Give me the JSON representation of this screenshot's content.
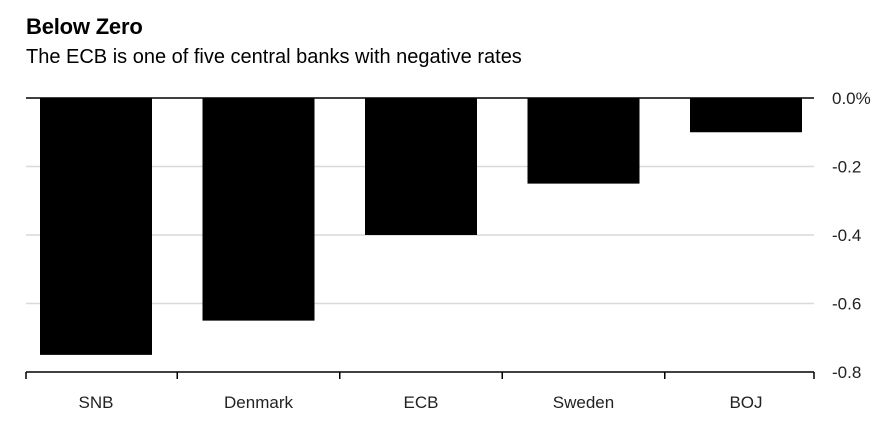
{
  "title": "Below Zero",
  "subtitle": "The ECB is one of five central banks with negative rates",
  "chart_data": {
    "type": "bar",
    "title": "Below Zero",
    "subtitle": "The ECB is one of five central banks with negative rates",
    "categories": [
      "SNB",
      "Denmark",
      "ECB",
      "Sweden",
      "BOJ"
    ],
    "values": [
      -0.75,
      -0.65,
      -0.4,
      -0.25,
      -0.1
    ],
    "ylim": [
      -0.8,
      0.0
    ],
    "yticks": [
      0.0,
      -0.2,
      -0.4,
      -0.6,
      -0.8
    ],
    "ytick_labels": [
      "0.0%",
      "-0.2",
      "-0.4",
      "-0.6",
      "-0.8"
    ],
    "xlabel": "",
    "ylabel": "",
    "grid": true,
    "bar_color": "#000000",
    "grid_color": "#d9d9d9"
  }
}
